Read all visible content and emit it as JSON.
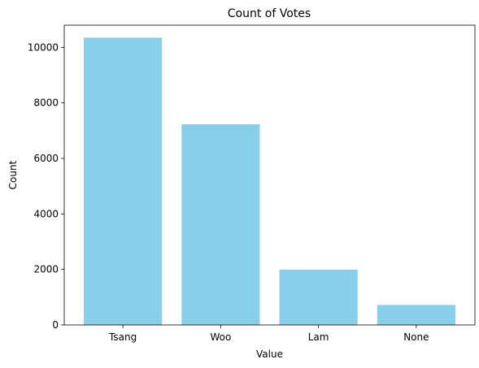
{
  "chart_data": {
    "type": "bar",
    "title": "Count of Votes",
    "xlabel": "Value",
    "ylabel": "Count",
    "categories": [
      "Tsang",
      "Woo",
      "Lam",
      "None"
    ],
    "values": [
      10350,
      7230,
      1990,
      720
    ],
    "ylim": [
      0,
      10800
    ],
    "yticks": [
      0,
      2000,
      4000,
      6000,
      8000,
      10000
    ],
    "ytick_labels": [
      "0",
      "2000",
      "4000",
      "6000",
      "8000",
      "10000"
    ],
    "bar_color": "#87ceeb",
    "grid": false,
    "legend": "none"
  }
}
